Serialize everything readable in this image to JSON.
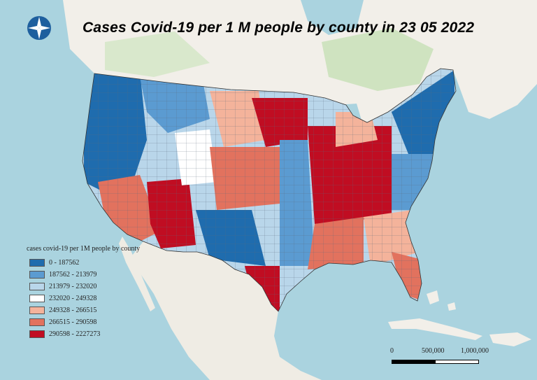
{
  "title": "Cases Covid-19 per 1 M people by county in 23 05 2022",
  "legend": {
    "title": "cases covid-19 per 1M people by county",
    "items": [
      {
        "label": "0 - 187562",
        "color": "#1f6cae"
      },
      {
        "label": "187562 - 213979",
        "color": "#5b9bd1"
      },
      {
        "label": "213979 - 232020",
        "color": "#b9d6ea"
      },
      {
        "label": "232020 - 249328",
        "color": "#ffffff"
      },
      {
        "label": "249328 - 266515",
        "color": "#f4b39b"
      },
      {
        "label": "266515 - 290598",
        "color": "#e2725e"
      },
      {
        "label": "290598 - 2227273",
        "color": "#c00d22"
      }
    ]
  },
  "scale": {
    "labels": [
      "0",
      "500,000",
      "1,000,000"
    ]
  },
  "icons": {
    "compass": "compass-rose-icon"
  },
  "colors": {
    "water": "#aad3df",
    "land": "#f2efe9",
    "forest": "#cfe3c0",
    "mexico": "#efece4"
  }
}
